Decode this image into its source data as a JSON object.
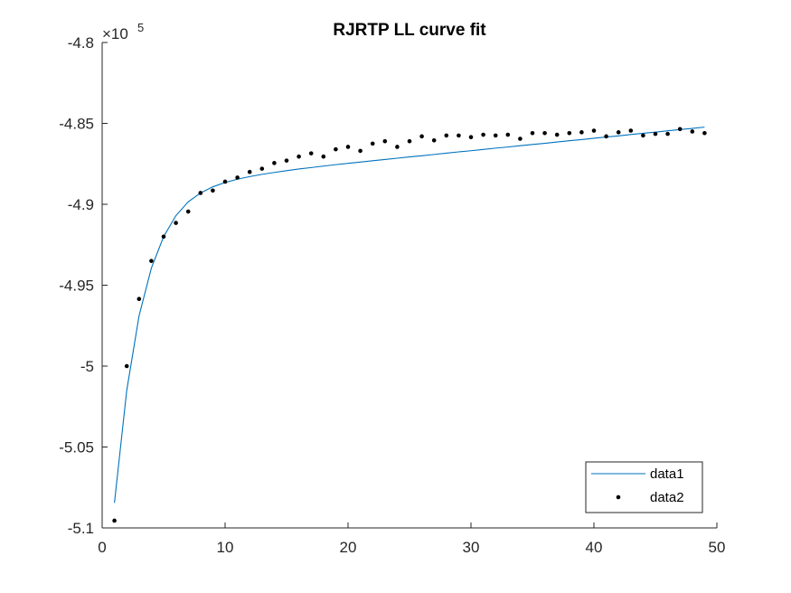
{
  "chart_data": {
    "type": "line",
    "title": "RJRTP LL curve fit",
    "xlabel": "",
    "ylabel": "",
    "xlim": [
      0,
      50
    ],
    "ylim": [
      -5.1,
      -4.8
    ],
    "y_exponent_base": "×10",
    "y_exponent_power": "5",
    "x_ticks": [
      0,
      10,
      20,
      30,
      40,
      50
    ],
    "x_tick_labels": [
      "0",
      "10",
      "20",
      "30",
      "40",
      "50"
    ],
    "y_ticks": [
      -4.8,
      -4.85,
      -4.9,
      -4.95,
      -5.0,
      -5.05,
      -5.1
    ],
    "y_tick_labels": [
      "-4.8",
      "-4.85",
      "-4.9",
      "-4.95",
      "-5",
      "-5.05",
      "-5.1"
    ],
    "grid": false,
    "legend_position": "bottom-right",
    "series": [
      {
        "name": "data1",
        "kind": "line",
        "color": "#0072BD",
        "x": [
          1,
          2,
          3,
          4,
          5,
          6,
          7,
          8,
          9,
          10,
          11,
          12,
          13,
          14,
          15,
          16,
          17,
          18,
          19,
          20,
          21,
          22,
          23,
          24,
          25,
          26,
          27,
          28,
          29,
          30,
          31,
          32,
          33,
          34,
          35,
          36,
          37,
          38,
          39,
          40,
          41,
          42,
          43,
          44,
          45,
          46,
          47,
          48,
          49
        ],
        "y": [
          -5.0845,
          -5.015,
          -4.969,
          -4.9395,
          -4.92,
          -4.907,
          -4.8985,
          -4.893,
          -4.8892,
          -4.8865,
          -4.8845,
          -4.8829,
          -4.8815,
          -4.8803,
          -4.8792,
          -4.8782,
          -4.8773,
          -4.8764,
          -4.8755,
          -4.8747,
          -4.8739,
          -4.8731,
          -4.8723,
          -4.8715,
          -4.8707,
          -4.87,
          -4.8692,
          -4.8684,
          -4.8676,
          -4.8669,
          -4.8661,
          -4.8653,
          -4.8646,
          -4.8638,
          -4.863,
          -4.8623,
          -4.8615,
          -4.8607,
          -4.86,
          -4.8592,
          -4.8584,
          -4.8577,
          -4.8569,
          -4.8561,
          -4.8554,
          -4.8546,
          -4.8538,
          -4.8531,
          -4.8523
        ]
      },
      {
        "name": "data2",
        "kind": "scatter",
        "color": "#000000",
        "x": [
          1,
          2,
          3,
          4,
          5,
          6,
          7,
          8,
          9,
          10,
          11,
          12,
          13,
          14,
          15,
          16,
          17,
          18,
          19,
          20,
          21,
          22,
          23,
          24,
          25,
          26,
          27,
          28,
          29,
          30,
          31,
          32,
          33,
          34,
          35,
          36,
          37,
          38,
          39,
          40,
          41,
          42,
          43,
          44,
          45,
          46,
          47,
          48,
          49
        ],
        "y": [
          -5.0955,
          -5.0,
          -4.9585,
          -4.935,
          -4.92,
          -4.9115,
          -4.9045,
          -4.893,
          -4.8915,
          -4.886,
          -4.8835,
          -4.88,
          -4.878,
          -4.8745,
          -4.873,
          -4.8705,
          -4.8685,
          -4.8705,
          -4.866,
          -4.8645,
          -4.867,
          -4.8625,
          -4.861,
          -4.8645,
          -4.861,
          -4.858,
          -4.8605,
          -4.8575,
          -4.8575,
          -4.8585,
          -4.857,
          -4.8575,
          -4.857,
          -4.8595,
          -4.856,
          -4.856,
          -4.857,
          -4.856,
          -4.8555,
          -4.8545,
          -4.858,
          -4.8555,
          -4.8545,
          -4.8575,
          -4.8565,
          -4.8565,
          -4.8535,
          -4.855,
          -4.856
        ]
      }
    ]
  }
}
